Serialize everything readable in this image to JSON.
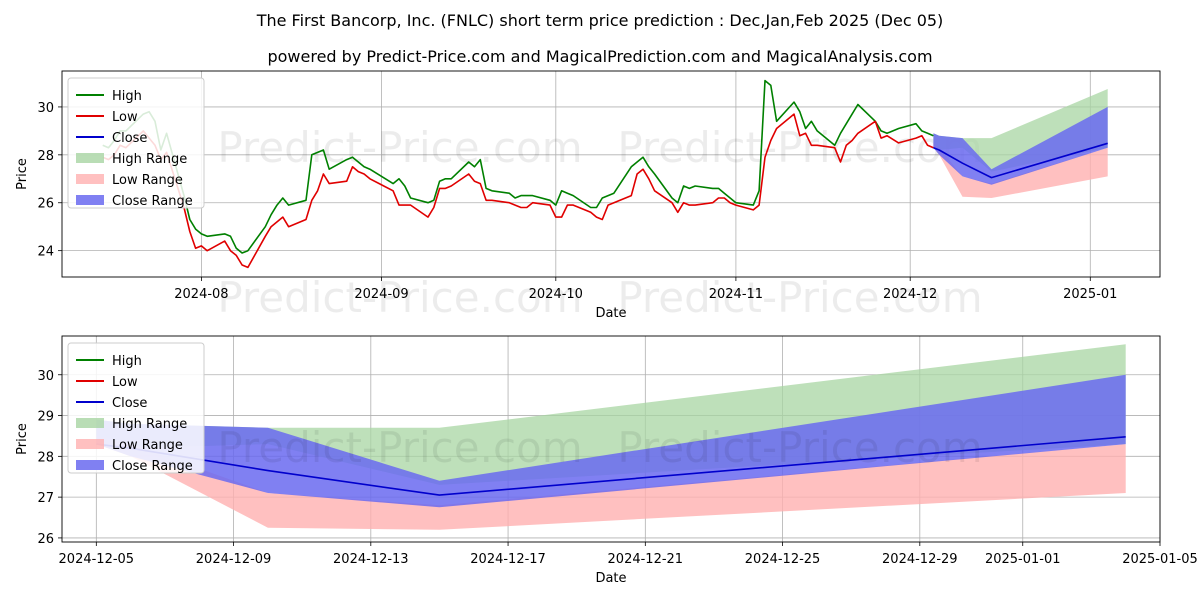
{
  "title": "The First Bancorp, Inc. (FNLC) short term price prediction : Dec,Jan,Feb 2025 (Dec 05)",
  "subtitle": "powered by Predict-Price.com and MagicalPrediction.com and MagicalAnalysis.com",
  "watermark": "Predict-Price.com",
  "colors": {
    "high": "#008000",
    "low": "#e00000",
    "close": "#0000cc",
    "high_range": "#a8d5a3",
    "low_range": "#ffb0b0",
    "close_range": "#6a6af0"
  },
  "legend": [
    "High",
    "Low",
    "Close",
    "High Range",
    "Low Range",
    "Close Range"
  ],
  "chart_data": [
    {
      "type": "line",
      "xlabel": "Date",
      "ylabel": "Price",
      "xlim": [
        "2024-07-08",
        "2025-01-13"
      ],
      "ylim": [
        22.9,
        31.5
      ],
      "yticks": [
        24,
        26,
        28,
        30
      ],
      "xticks": [
        "2024-08",
        "2024-09",
        "2024-10",
        "2024-11",
        "2024-12",
        "2025-01"
      ],
      "xtick_dates": [
        "2024-08-01",
        "2024-09-01",
        "2024-10-01",
        "2024-11-01",
        "2024-12-01",
        "2025-01-01"
      ],
      "grid": true,
      "legend_position": "upper-left",
      "x": [
        "2024-07-15",
        "2024-07-16",
        "2024-07-17",
        "2024-07-18",
        "2024-07-19",
        "2024-07-22",
        "2024-07-23",
        "2024-07-24",
        "2024-07-25",
        "2024-07-26",
        "2024-07-29",
        "2024-07-30",
        "2024-07-31",
        "2024-08-01",
        "2024-08-02",
        "2024-08-05",
        "2024-08-06",
        "2024-08-07",
        "2024-08-08",
        "2024-08-09",
        "2024-08-12",
        "2024-08-13",
        "2024-08-14",
        "2024-08-15",
        "2024-08-16",
        "2024-08-19",
        "2024-08-20",
        "2024-08-21",
        "2024-08-22",
        "2024-08-23",
        "2024-08-26",
        "2024-08-27",
        "2024-08-28",
        "2024-08-29",
        "2024-08-30",
        "2024-09-03",
        "2024-09-04",
        "2024-09-05",
        "2024-09-06",
        "2024-09-09",
        "2024-09-10",
        "2024-09-11",
        "2024-09-12",
        "2024-09-13",
        "2024-09-16",
        "2024-09-17",
        "2024-09-18",
        "2024-09-19",
        "2024-09-20",
        "2024-09-23",
        "2024-09-24",
        "2024-09-25",
        "2024-09-26",
        "2024-09-27",
        "2024-09-30",
        "2024-10-01",
        "2024-10-02",
        "2024-10-03",
        "2024-10-04",
        "2024-10-07",
        "2024-10-08",
        "2024-10-09",
        "2024-10-10",
        "2024-10-11",
        "2024-10-14",
        "2024-10-15",
        "2024-10-16",
        "2024-10-17",
        "2024-10-18",
        "2024-10-21",
        "2024-10-22",
        "2024-10-23",
        "2024-10-24",
        "2024-10-25",
        "2024-10-28",
        "2024-10-29",
        "2024-10-30",
        "2024-10-31",
        "2024-11-01",
        "2024-11-04",
        "2024-11-05",
        "2024-11-06",
        "2024-11-07",
        "2024-11-08",
        "2024-11-11",
        "2024-11-12",
        "2024-11-13",
        "2024-11-14",
        "2024-11-15",
        "2024-11-18",
        "2024-11-19",
        "2024-11-20",
        "2024-11-21",
        "2024-11-22",
        "2024-11-25",
        "2024-11-26",
        "2024-11-27",
        "2024-11-29",
        "2024-12-02",
        "2024-12-03",
        "2024-12-04",
        "2024-12-05"
      ],
      "series": [
        {
          "name": "High",
          "values": [
            28.4,
            28.3,
            28.6,
            29.0,
            29.0,
            29.7,
            29.8,
            29.4,
            28.2,
            28.9,
            26.3,
            25.3,
            24.9,
            24.7,
            24.6,
            24.7,
            24.6,
            24.1,
            23.9,
            24.0,
            25.0,
            25.5,
            25.9,
            26.2,
            25.9,
            26.1,
            28.0,
            28.1,
            28.2,
            27.4,
            27.8,
            27.9,
            27.7,
            27.5,
            27.4,
            26.8,
            27.0,
            26.7,
            26.2,
            26.0,
            26.1,
            26.9,
            27.0,
            27.0,
            27.7,
            27.5,
            27.8,
            26.6,
            26.5,
            26.4,
            26.2,
            26.3,
            26.3,
            26.3,
            26.1,
            25.9,
            26.5,
            26.4,
            26.3,
            25.8,
            25.8,
            26.2,
            26.3,
            26.4,
            27.5,
            27.7,
            27.9,
            27.5,
            27.2,
            26.2,
            26.0,
            26.7,
            26.6,
            26.7,
            26.6,
            26.6,
            26.4,
            26.2,
            26.0,
            25.9,
            26.5,
            31.1,
            30.9,
            29.4,
            30.2,
            29.8,
            29.1,
            29.4,
            29.0,
            28.4,
            28.9,
            29.3,
            29.7,
            30.1,
            29.4,
            29.0,
            28.9,
            29.1,
            29.3,
            29.0,
            28.9,
            28.8
          ]
        },
        {
          "name": "Low",
          "values": [
            27.9,
            27.8,
            28.0,
            28.4,
            28.3,
            29.0,
            28.7,
            28.4,
            27.8,
            28.1,
            25.8,
            24.8,
            24.1,
            24.2,
            24.0,
            24.4,
            24.0,
            23.8,
            23.4,
            23.3,
            24.6,
            25.0,
            25.2,
            25.4,
            25.0,
            25.3,
            26.1,
            26.5,
            27.2,
            26.8,
            26.9,
            27.5,
            27.3,
            27.2,
            27.0,
            26.5,
            25.9,
            25.9,
            25.9,
            25.4,
            25.8,
            26.6,
            26.6,
            26.7,
            27.2,
            26.9,
            26.8,
            26.1,
            26.1,
            26.0,
            25.9,
            25.8,
            25.8,
            26.0,
            25.9,
            25.4,
            25.4,
            25.9,
            25.9,
            25.6,
            25.4,
            25.3,
            25.9,
            26.0,
            26.3,
            27.2,
            27.4,
            27.0,
            26.5,
            26.0,
            25.6,
            26.0,
            25.9,
            25.9,
            26.0,
            26.2,
            26.2,
            26.0,
            25.9,
            25.7,
            25.9,
            27.9,
            28.6,
            29.1,
            29.7,
            28.8,
            28.9,
            28.4,
            28.4,
            28.3,
            27.7,
            28.4,
            28.6,
            28.9,
            29.4,
            28.7,
            28.8,
            28.5,
            28.7,
            28.8,
            28.4,
            28.3
          ]
        }
      ]
    },
    {
      "type": "area",
      "xlabel": "Date",
      "ylabel": "Price",
      "xlim": [
        "2024-12-04",
        "2025-01-05"
      ],
      "ylim": [
        25.9,
        30.95
      ],
      "yticks": [
        26,
        27,
        28,
        29,
        30
      ],
      "xticks": [
        "2024-12-05",
        "2024-12-09",
        "2024-12-13",
        "2024-12-17",
        "2024-12-21",
        "2024-12-25",
        "2024-12-29",
        "2025-01-01",
        "2025-01-05"
      ],
      "grid": true,
      "legend_position": "upper-left",
      "x": [
        "2024-12-05",
        "2024-12-06",
        "2024-12-10",
        "2024-12-15",
        "2025-01-04"
      ],
      "series": [
        {
          "name": "Close",
          "values": [
            28.3,
            28.2,
            27.65,
            27.05,
            28.48
          ]
        },
        {
          "name": "High Range",
          "lower": [
            28.3,
            28.2,
            28.3,
            27.3,
            28.3
          ],
          "upper": [
            28.9,
            28.8,
            28.7,
            28.7,
            30.75
          ]
        },
        {
          "name": "Low Range",
          "lower": [
            28.3,
            28.0,
            26.25,
            26.2,
            27.1
          ],
          "upper": [
            28.5,
            28.3,
            27.1,
            26.8,
            28.3
          ]
        },
        {
          "name": "Close Range",
          "lower": [
            28.3,
            28.0,
            27.1,
            26.75,
            28.3
          ],
          "upper": [
            28.9,
            28.8,
            28.7,
            27.4,
            30.0
          ]
        }
      ]
    }
  ]
}
